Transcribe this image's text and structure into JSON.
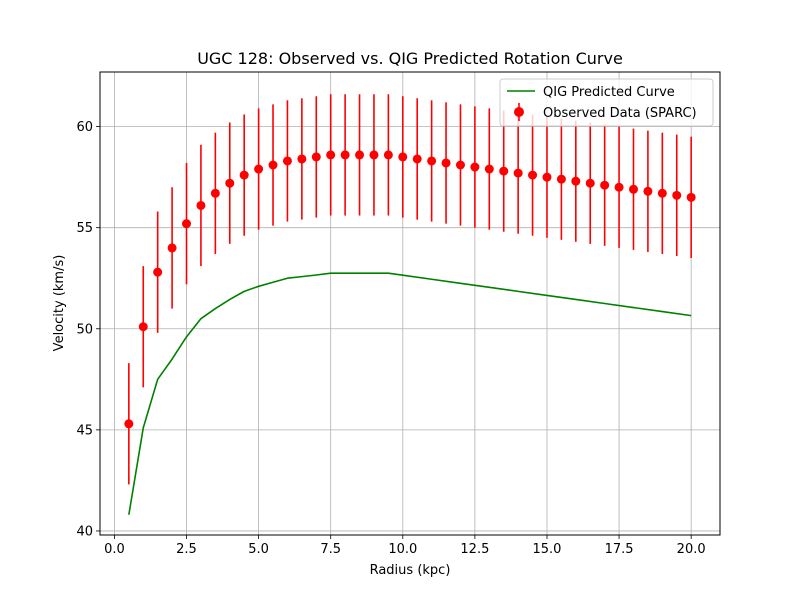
{
  "chart_data": {
    "type": "line",
    "title": "UGC 128: Observed vs. QIG Predicted Rotation Curve",
    "xlabel": "Radius (kpc)",
    "ylabel": "Velocity (km/s)",
    "xlim": [
      -0.5,
      21.0
    ],
    "ylim": [
      39.8,
      62.7
    ],
    "grid": true,
    "legend_position": "top-right",
    "x_ticks": [
      0.0,
      2.5,
      5.0,
      7.5,
      10.0,
      12.5,
      15.0,
      17.5,
      20.0
    ],
    "x_tick_labels": [
      "0.0",
      "2.5",
      "5.0",
      "7.5",
      "10.0",
      "12.5",
      "15.0",
      "17.5",
      "20.0"
    ],
    "y_ticks": [
      40,
      45,
      50,
      55,
      60
    ],
    "y_tick_labels": [
      "40",
      "45",
      "50",
      "55",
      "60"
    ],
    "series": [
      {
        "name": "QIG Predicted Curve",
        "kind": "line",
        "color": "#008000",
        "x": [
          0.5,
          1.0,
          1.5,
          2.0,
          2.5,
          3.0,
          3.5,
          4.0,
          4.5,
          5.0,
          5.5,
          6.0,
          6.5,
          7.0,
          7.5,
          8.0,
          8.5,
          9.0,
          9.5,
          10.0,
          11.0,
          12.0,
          13.0,
          14.0,
          15.0,
          16.0,
          17.0,
          18.0,
          19.0,
          20.0
        ],
        "y": [
          40.8,
          45.1,
          47.5,
          48.5,
          49.6,
          50.5,
          51.0,
          51.45,
          51.85,
          52.1,
          52.3,
          52.5,
          52.58,
          52.66,
          52.75,
          52.75,
          52.75,
          52.75,
          52.75,
          52.65,
          52.45,
          52.25,
          52.05,
          51.85,
          51.65,
          51.45,
          51.25,
          51.05,
          50.85,
          50.65
        ]
      },
      {
        "name": "Observed Data (SPARC)",
        "kind": "errorbar",
        "color": "#ff0000",
        "x": [
          0.5,
          1.0,
          1.5,
          2.0,
          2.5,
          3.0,
          3.5,
          4.0,
          4.5,
          5.0,
          5.5,
          6.0,
          6.5,
          7.0,
          7.5,
          8.0,
          8.5,
          9.0,
          9.5,
          10.0,
          10.5,
          11.0,
          11.5,
          12.0,
          12.5,
          13.0,
          13.5,
          14.0,
          14.5,
          15.0,
          15.5,
          16.0,
          16.5,
          17.0,
          17.5,
          18.0,
          18.5,
          19.0,
          19.5,
          20.0
        ],
        "y": [
          45.3,
          50.1,
          52.8,
          54.0,
          55.2,
          56.1,
          56.7,
          57.2,
          57.6,
          57.9,
          58.1,
          58.3,
          58.4,
          58.5,
          58.6,
          58.6,
          58.6,
          58.6,
          58.6,
          58.5,
          58.4,
          58.3,
          58.2,
          58.1,
          58.0,
          57.9,
          57.8,
          57.7,
          57.6,
          57.5,
          57.4,
          57.3,
          57.2,
          57.1,
          57.0,
          56.9,
          56.8,
          56.7,
          56.6,
          56.5
        ],
        "yerr": 3.0
      }
    ]
  }
}
